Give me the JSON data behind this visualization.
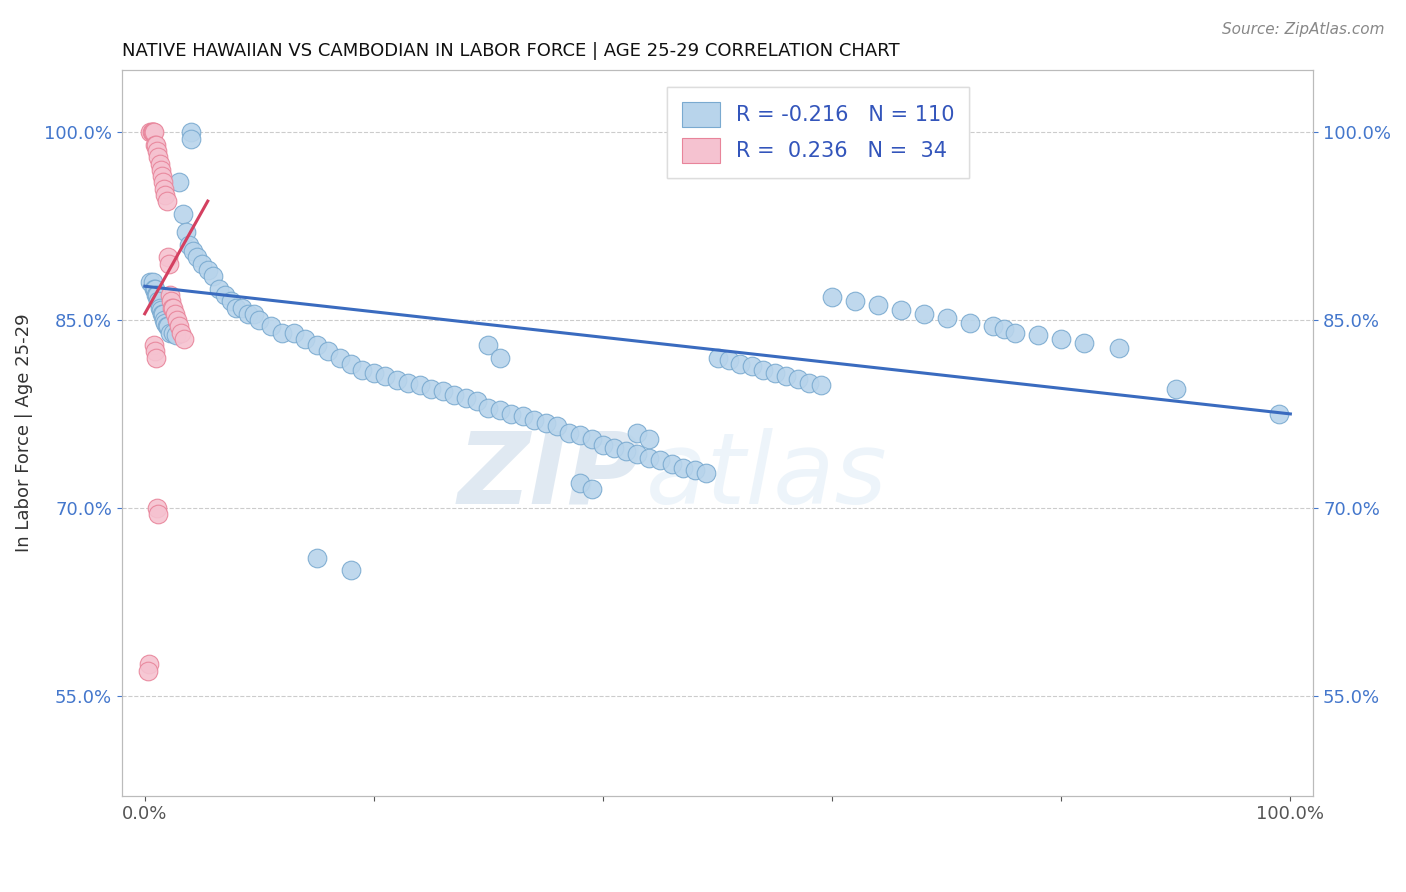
{
  "title": "NATIVE HAWAIIAN VS CAMBODIAN IN LABOR FORCE | AGE 25-29 CORRELATION CHART",
  "source_text": "Source: ZipAtlas.com",
  "ylabel": "In Labor Force | Age 25-29",
  "xlim": [
    -0.02,
    1.02
  ],
  "ylim": [
    0.47,
    1.05
  ],
  "yticks": [
    0.55,
    0.7,
    0.85,
    1.0
  ],
  "ytick_labels": [
    "55.0%",
    "70.0%",
    "85.0%",
    "100.0%"
  ],
  "xticks": [
    0.0,
    0.2,
    0.4,
    0.6,
    0.8,
    1.0
  ],
  "xtick_labels": [
    "0.0%",
    "",
    "",
    "",
    "",
    "100.0%"
  ],
  "blue_R": -0.216,
  "blue_N": 110,
  "pink_R": 0.236,
  "pink_N": 34,
  "blue_color": "#b8d4eb",
  "blue_edge": "#7aaad0",
  "pink_color": "#f5c2d0",
  "pink_edge": "#e8849a",
  "blue_line_color": "#3a6bbf",
  "pink_line_color": "#d44060",
  "watermark_zip": "ZIP",
  "watermark_atlas": "atlas",
  "blue_line_x0": 0.0,
  "blue_line_y0": 0.877,
  "blue_line_x1": 1.0,
  "blue_line_y1": 0.775,
  "pink_line_x0": 0.0,
  "pink_line_y0": 0.855,
  "pink_line_x1": 0.055,
  "pink_line_y1": 0.945,
  "blue_x": [
    0.005,
    0.007,
    0.008,
    0.009,
    0.01,
    0.011,
    0.012,
    0.013,
    0.014,
    0.015,
    0.016,
    0.017,
    0.018,
    0.019,
    0.02,
    0.022,
    0.025,
    0.027,
    0.03,
    0.033,
    0.036,
    0.039,
    0.042,
    0.046,
    0.05,
    0.055,
    0.06,
    0.065,
    0.07,
    0.075,
    0.08,
    0.085,
    0.09,
    0.095,
    0.1,
    0.11,
    0.12,
    0.13,
    0.14,
    0.15,
    0.16,
    0.17,
    0.18,
    0.19,
    0.2,
    0.21,
    0.22,
    0.23,
    0.24,
    0.25,
    0.26,
    0.27,
    0.28,
    0.29,
    0.3,
    0.31,
    0.32,
    0.33,
    0.34,
    0.35,
    0.36,
    0.37,
    0.38,
    0.39,
    0.4,
    0.41,
    0.42,
    0.43,
    0.44,
    0.45,
    0.46,
    0.47,
    0.48,
    0.49,
    0.5,
    0.51,
    0.52,
    0.53,
    0.54,
    0.55,
    0.56,
    0.57,
    0.58,
    0.59,
    0.6,
    0.62,
    0.64,
    0.66,
    0.68,
    0.7,
    0.72,
    0.74,
    0.75,
    0.76,
    0.78,
    0.8,
    0.82,
    0.85,
    0.9,
    0.99,
    0.04,
    0.04,
    0.15,
    0.18,
    0.3,
    0.31,
    0.38,
    0.39,
    0.43,
    0.44
  ],
  "blue_y": [
    0.88,
    0.88,
    0.875,
    0.875,
    0.87,
    0.87,
    0.865,
    0.86,
    0.858,
    0.855,
    0.855,
    0.85,
    0.848,
    0.845,
    0.845,
    0.84,
    0.84,
    0.838,
    0.96,
    0.935,
    0.92,
    0.91,
    0.905,
    0.9,
    0.895,
    0.89,
    0.885,
    0.875,
    0.87,
    0.865,
    0.86,
    0.86,
    0.855,
    0.855,
    0.85,
    0.845,
    0.84,
    0.84,
    0.835,
    0.83,
    0.825,
    0.82,
    0.815,
    0.81,
    0.808,
    0.805,
    0.802,
    0.8,
    0.798,
    0.795,
    0.793,
    0.79,
    0.788,
    0.785,
    0.78,
    0.778,
    0.775,
    0.773,
    0.77,
    0.768,
    0.765,
    0.76,
    0.758,
    0.755,
    0.75,
    0.748,
    0.745,
    0.743,
    0.74,
    0.738,
    0.735,
    0.732,
    0.73,
    0.728,
    0.82,
    0.818,
    0.815,
    0.813,
    0.81,
    0.808,
    0.805,
    0.803,
    0.8,
    0.798,
    0.868,
    0.865,
    0.862,
    0.858,
    0.855,
    0.852,
    0.848,
    0.845,
    0.843,
    0.84,
    0.838,
    0.835,
    0.832,
    0.828,
    0.795,
    0.775,
    1.0,
    0.995,
    0.66,
    0.65,
    0.83,
    0.82,
    0.72,
    0.715,
    0.76,
    0.755
  ],
  "pink_x": [
    0.005,
    0.006,
    0.007,
    0.007,
    0.008,
    0.009,
    0.01,
    0.011,
    0.012,
    0.013,
    0.014,
    0.015,
    0.016,
    0.017,
    0.018,
    0.019,
    0.02,
    0.021,
    0.022,
    0.023,
    0.024,
    0.025,
    0.026,
    0.028,
    0.03,
    0.032,
    0.034,
    0.008,
    0.009,
    0.01,
    0.011,
    0.012,
    0.004,
    0.003
  ],
  "pink_y": [
    1.0,
    1.0,
    1.0,
    1.0,
    1.0,
    0.99,
    0.99,
    0.985,
    0.98,
    0.975,
    0.97,
    0.965,
    0.96,
    0.955,
    0.95,
    0.945,
    0.9,
    0.895,
    0.87,
    0.865,
    0.86,
    0.86,
    0.855,
    0.85,
    0.845,
    0.84,
    0.835,
    0.83,
    0.825,
    0.82,
    0.7,
    0.695,
    0.575,
    0.57
  ]
}
